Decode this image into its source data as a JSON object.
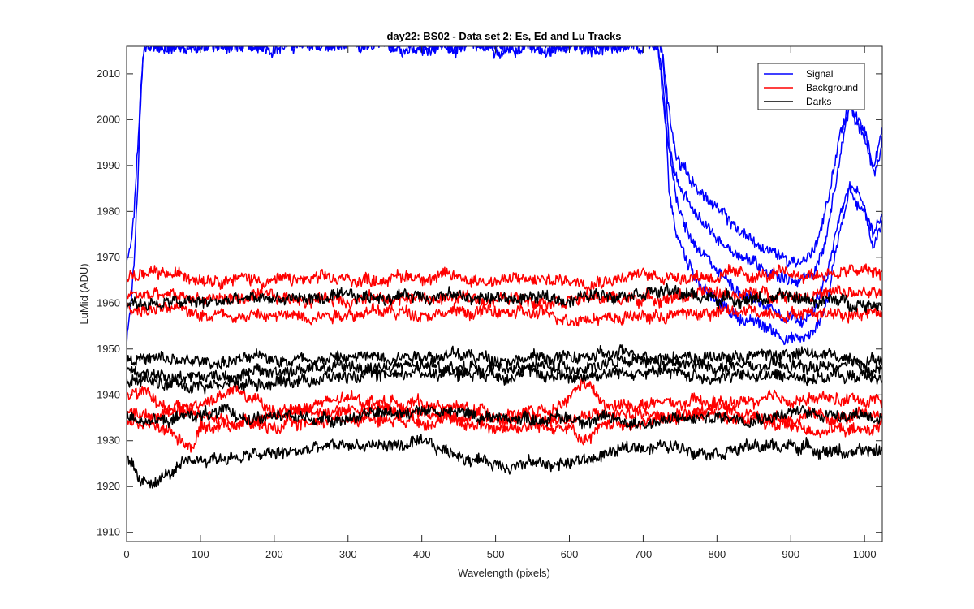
{
  "chart_data": {
    "type": "line",
    "title": "day22: BS02 - Data set 2: Es, Ed and Lu Tracks",
    "xlabel": "Wavelength (pixels)",
    "ylabel": "LuMid (ADU)",
    "xlim": [
      0,
      1024
    ],
    "ylim": [
      1908,
      2016
    ],
    "x_ticks": [
      0,
      100,
      200,
      300,
      400,
      500,
      600,
      700,
      800,
      900,
      1000
    ],
    "y_ticks": [
      1910,
      1920,
      1930,
      1940,
      1950,
      1960,
      1970,
      1980,
      1990,
      2000,
      2010
    ],
    "grid": false,
    "legend_position": "top-right",
    "legend": [
      {
        "label": "Signal",
        "color": "#0000ff"
      },
      {
        "label": "Background",
        "color": "#ff0000"
      },
      {
        "label": "Darks",
        "color": "#000000"
      }
    ],
    "series": [
      {
        "group": "Signal",
        "color": "#0000ff",
        "x": [
          0,
          5,
          10,
          15,
          18,
          22,
          24,
          720,
          728,
          735,
          745,
          760,
          780,
          800,
          830,
          860,
          890,
          910,
          930,
          950,
          965,
          980,
          1000,
          1012,
          1024
        ],
        "y": [
          1951,
          1958,
          1968,
          1985,
          2000,
          2012,
          2016,
          2016,
          2005,
          1985,
          1975,
          1969,
          1964,
          1960,
          1957,
          1955,
          1953,
          1952,
          1953,
          1961,
          1975,
          1986,
          1982,
          1972,
          1978
        ]
      },
      {
        "group": "Signal",
        "color": "#0000ff",
        "x": [
          0,
          5,
          10,
          15,
          20,
          24,
          726,
          735,
          745,
          760,
          780,
          800,
          830,
          860,
          890,
          910,
          930,
          950,
          965,
          980,
          1000,
          1012,
          1024
        ],
        "y": [
          1968,
          1971,
          1980,
          1995,
          2010,
          2016,
          2016,
          1995,
          1982,
          1975,
          1970,
          1967,
          1963,
          1960,
          1958,
          1957,
          1958,
          1966,
          1978,
          1985,
          1980,
          1975,
          1980
        ]
      },
      {
        "group": "Signal",
        "color": "#0000ff",
        "x": [
          720,
          730,
          740,
          755,
          775,
          800,
          830,
          860,
          890,
          910,
          930,
          950,
          965,
          980,
          1000,
          1012,
          1024
        ],
        "y": [
          2016,
          2000,
          1990,
          1983,
          1978,
          1974,
          1971,
          1968,
          1966,
          1965,
          1966,
          1975,
          1990,
          2003,
          1997,
          1990,
          1998
        ]
      },
      {
        "group": "Signal",
        "color": "#0000ff",
        "x": [
          725,
          735,
          745,
          760,
          780,
          800,
          830,
          860,
          890,
          910,
          930,
          950,
          965,
          980,
          1000,
          1012,
          1024
        ],
        "y": [
          2016,
          2002,
          1993,
          1988,
          1984,
          1980,
          1976,
          1972,
          1970,
          1969,
          1971,
          1982,
          1996,
          2003,
          1995,
          1988,
          1996
        ]
      },
      {
        "group": "Background",
        "color": "#ff0000",
        "x": [
          0,
          100,
          200,
          300,
          400,
          500,
          600,
          700,
          800,
          900,
          1000,
          1024
        ],
        "y": [
          1966,
          1966,
          1965,
          1965,
          1966,
          1965,
          1965,
          1966,
          1966,
          1966,
          1967,
          1966
        ]
      },
      {
        "group": "Background",
        "color": "#ff0000",
        "x": [
          0,
          100,
          200,
          300,
          400,
          500,
          600,
          700,
          800,
          900,
          1000,
          1024
        ],
        "y": [
          1962,
          1961,
          1961,
          1961,
          1961,
          1961,
          1961,
          1961,
          1962,
          1962,
          1962,
          1962
        ]
      },
      {
        "group": "Background",
        "color": "#ff0000",
        "x": [
          0,
          100,
          200,
          300,
          400,
          500,
          600,
          700,
          800,
          900,
          1000,
          1024
        ],
        "y": [
          1959,
          1958,
          1957,
          1958,
          1958,
          1958,
          1957,
          1957,
          1958,
          1958,
          1958,
          1958
        ]
      },
      {
        "group": "Background",
        "color": "#ff0000",
        "x": [
          0,
          50,
          100,
          150,
          200,
          300,
          400,
          500,
          580,
          600,
          620,
          650,
          700,
          800,
          900,
          1000,
          1024
        ],
        "y": [
          1936,
          1936,
          1938,
          1941,
          1936,
          1939,
          1938,
          1936,
          1936,
          1939,
          1943,
          1937,
          1938,
          1938,
          1939,
          1939,
          1939
        ]
      },
      {
        "group": "Background",
        "color": "#ff0000",
        "x": [
          0,
          50,
          90,
          100,
          150,
          200,
          300,
          400,
          500,
          600,
          620,
          650,
          700,
          800,
          900,
          1000,
          1024
        ],
        "y": [
          1934,
          1933,
          1929,
          1933,
          1934,
          1933,
          1935,
          1935,
          1933,
          1933,
          1929,
          1934,
          1934,
          1936,
          1933,
          1932,
          1934
        ]
      },
      {
        "group": "Background",
        "color": "#ff0000",
        "x": [
          0,
          50,
          100,
          150,
          200,
          300,
          400,
          500,
          600,
          700,
          800,
          900,
          1000,
          1024
        ],
        "y": [
          1941,
          1938,
          1935,
          1934,
          1936,
          1937,
          1936,
          1935,
          1935,
          1936,
          1937,
          1935,
          1935,
          1936
        ]
      },
      {
        "group": "Darks",
        "color": "#000000",
        "x": [
          0,
          100,
          200,
          300,
          400,
          500,
          600,
          700,
          800,
          900,
          1000,
          1024
        ],
        "y": [
          1960,
          1960,
          1961,
          1961,
          1962,
          1961,
          1961,
          1963,
          1961,
          1961,
          1960,
          1960
        ]
      },
      {
        "group": "Darks",
        "color": "#000000",
        "x": [
          0,
          100,
          200,
          300,
          400,
          500,
          600,
          700,
          800,
          900,
          1000,
          1024
        ],
        "y": [
          1948,
          1947,
          1948,
          1948,
          1949,
          1948,
          1948,
          1949,
          1948,
          1949,
          1948,
          1948
        ]
      },
      {
        "group": "Darks",
        "color": "#000000",
        "x": [
          0,
          100,
          200,
          300,
          400,
          500,
          600,
          700,
          800,
          900,
          1000,
          1024
        ],
        "y": [
          1945,
          1944,
          1945,
          1946,
          1946,
          1946,
          1946,
          1947,
          1946,
          1946,
          1946,
          1946
        ]
      },
      {
        "group": "Darks",
        "color": "#000000",
        "x": [
          0,
          100,
          200,
          300,
          400,
          500,
          600,
          700,
          800,
          900,
          1000,
          1024
        ],
        "y": [
          1943,
          1942,
          1943,
          1944,
          1945,
          1945,
          1944,
          1945,
          1944,
          1944,
          1944,
          1943
        ]
      },
      {
        "group": "Darks",
        "color": "#000000",
        "x": [
          0,
          50,
          100,
          200,
          300,
          400,
          500,
          600,
          700,
          800,
          900,
          1000,
          1024
        ],
        "y": [
          1936,
          1934,
          1936,
          1935,
          1935,
          1937,
          1935,
          1935,
          1934,
          1935,
          1936,
          1936,
          1935
        ]
      },
      {
        "group": "Darks",
        "color": "#000000",
        "x": [
          0,
          20,
          100,
          200,
          300,
          400,
          500,
          600,
          700,
          800,
          900,
          1000,
          1024
        ],
        "y": [
          1926,
          1920,
          1926,
          1927,
          1929,
          1929,
          1925,
          1925,
          1929,
          1928,
          1929,
          1927,
          1928
        ]
      }
    ]
  }
}
